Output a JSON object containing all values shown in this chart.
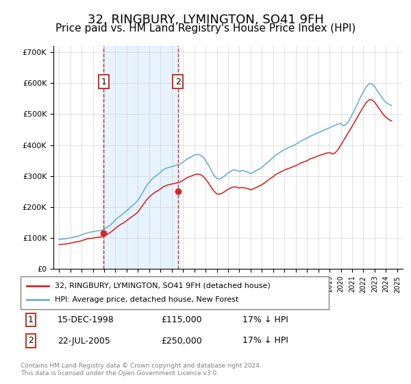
{
  "title": "32, RINGBURY, LYMINGTON, SO41 9FH",
  "subtitle": "Price paid vs. HM Land Registry's House Price Index (HPI)",
  "title_fontsize": 13,
  "subtitle_fontsize": 11,
  "legend_line1": "32, RINGBURY, LYMINGTON, SO41 9FH (detached house)",
  "legend_line2": "HPI: Average price, detached house, New Forest",
  "footer": "Contains HM Land Registry data © Crown copyright and database right 2024.\nThis data is licensed under the Open Government Licence v3.0.",
  "transactions": [
    {
      "num": 1,
      "date": "15-DEC-1998",
      "price": "£115,000",
      "pct": "17% ↓ HPI",
      "x_year": 1998.96,
      "y_val": 115000
    },
    {
      "num": 2,
      "date": "22-JUL-2005",
      "price": "£250,000",
      "pct": "17% ↓ HPI",
      "x_year": 2005.55,
      "y_val": 250000
    }
  ],
  "hpi_color": "#6baed6",
  "price_color": "#d62728",
  "marker_box_color": "#c0392b",
  "shade_color": "#ddeeff",
  "ylim": [
    0,
    720000
  ],
  "yticks": [
    0,
    100000,
    200000,
    300000,
    400000,
    500000,
    600000,
    700000
  ],
  "ytick_labels": [
    "£0",
    "£100K",
    "£200K",
    "£300K",
    "£400K",
    "£500K",
    "£600K",
    "£700K"
  ],
  "xlim": [
    1994.5,
    2025.5
  ],
  "hpi_years": [
    1995.0,
    1995.25,
    1995.5,
    1995.75,
    1996.0,
    1996.25,
    1996.5,
    1996.75,
    1997.0,
    1997.25,
    1997.5,
    1997.75,
    1998.0,
    1998.25,
    1998.5,
    1998.75,
    1999.0,
    1999.25,
    1999.5,
    1999.75,
    2000.0,
    2000.25,
    2000.5,
    2000.75,
    2001.0,
    2001.25,
    2001.5,
    2001.75,
    2002.0,
    2002.25,
    2002.5,
    2002.75,
    2003.0,
    2003.25,
    2003.5,
    2003.75,
    2004.0,
    2004.25,
    2004.5,
    2004.75,
    2005.0,
    2005.25,
    2005.5,
    2005.75,
    2006.0,
    2006.25,
    2006.5,
    2006.75,
    2007.0,
    2007.25,
    2007.5,
    2007.75,
    2008.0,
    2008.25,
    2008.5,
    2008.75,
    2009.0,
    2009.25,
    2009.5,
    2009.75,
    2010.0,
    2010.25,
    2010.5,
    2010.75,
    2011.0,
    2011.25,
    2011.5,
    2011.75,
    2012.0,
    2012.25,
    2012.5,
    2012.75,
    2013.0,
    2013.25,
    2013.5,
    2013.75,
    2014.0,
    2014.25,
    2014.5,
    2014.75,
    2015.0,
    2015.25,
    2015.5,
    2015.75,
    2016.0,
    2016.25,
    2016.5,
    2016.75,
    2017.0,
    2017.25,
    2017.5,
    2017.75,
    2018.0,
    2018.25,
    2018.5,
    2018.75,
    2019.0,
    2019.25,
    2019.5,
    2019.75,
    2020.0,
    2020.25,
    2020.5,
    2020.75,
    2021.0,
    2021.25,
    2021.5,
    2021.75,
    2022.0,
    2022.25,
    2022.5,
    2022.75,
    2023.0,
    2023.25,
    2023.5,
    2023.75,
    2024.0,
    2024.25,
    2024.5
  ],
  "hpi_values": [
    95000,
    96000,
    97000,
    98000,
    100000,
    102000,
    104000,
    106000,
    110000,
    113000,
    116000,
    118000,
    120000,
    122000,
    123000,
    124000,
    128000,
    134000,
    140000,
    148000,
    158000,
    166000,
    173000,
    180000,
    188000,
    196000,
    204000,
    212000,
    222000,
    236000,
    252000,
    268000,
    280000,
    290000,
    298000,
    304000,
    312000,
    320000,
    325000,
    328000,
    330000,
    333000,
    336000,
    338000,
    345000,
    352000,
    358000,
    362000,
    368000,
    370000,
    368000,
    362000,
    350000,
    336000,
    318000,
    302000,
    292000,
    290000,
    295000,
    302000,
    310000,
    316000,
    320000,
    318000,
    315000,
    318000,
    315000,
    312000,
    308000,
    312000,
    318000,
    322000,
    328000,
    336000,
    344000,
    352000,
    360000,
    368000,
    374000,
    380000,
    385000,
    390000,
    394000,
    398000,
    402000,
    408000,
    414000,
    418000,
    422000,
    428000,
    432000,
    436000,
    440000,
    444000,
    448000,
    452000,
    456000,
    460000,
    464000,
    468000,
    470000,
    462000,
    468000,
    480000,
    498000,
    516000,
    535000,
    555000,
    572000,
    588000,
    598000,
    598000,
    590000,
    575000,
    562000,
    548000,
    538000,
    532000,
    528000
  ],
  "price_years": [
    1995.0,
    1995.25,
    1995.5,
    1995.75,
    1996.0,
    1996.25,
    1996.5,
    1996.75,
    1997.0,
    1997.25,
    1997.5,
    1997.75,
    1998.0,
    1998.25,
    1998.5,
    1998.75,
    1999.0,
    1999.25,
    1999.5,
    1999.75,
    2000.0,
    2000.25,
    2000.5,
    2000.75,
    2001.0,
    2001.25,
    2001.5,
    2001.75,
    2002.0,
    2002.25,
    2002.5,
    2002.75,
    2003.0,
    2003.25,
    2003.5,
    2003.75,
    2004.0,
    2004.25,
    2004.5,
    2004.75,
    2005.0,
    2005.25,
    2005.5,
    2005.75,
    2006.0,
    2006.25,
    2006.5,
    2006.75,
    2007.0,
    2007.25,
    2007.5,
    2007.75,
    2008.0,
    2008.25,
    2008.5,
    2008.75,
    2009.0,
    2009.25,
    2009.5,
    2009.75,
    2010.0,
    2010.25,
    2010.5,
    2010.75,
    2011.0,
    2011.25,
    2011.5,
    2011.75,
    2012.0,
    2012.25,
    2012.5,
    2012.75,
    2013.0,
    2013.25,
    2013.5,
    2013.75,
    2014.0,
    2014.25,
    2014.5,
    2014.75,
    2015.0,
    2015.25,
    2015.5,
    2015.75,
    2016.0,
    2016.25,
    2016.5,
    2016.75,
    2017.0,
    2017.25,
    2017.5,
    2017.75,
    2018.0,
    2018.25,
    2018.5,
    2018.75,
    2019.0,
    2019.25,
    2019.5,
    2019.75,
    2020.0,
    2020.25,
    2020.5,
    2020.75,
    2021.0,
    2021.25,
    2021.5,
    2021.75,
    2022.0,
    2022.25,
    2022.5,
    2022.75,
    2023.0,
    2023.25,
    2023.5,
    2023.75,
    2024.0,
    2024.25,
    2024.5
  ],
  "price_values": [
    78000,
    79000,
    80000,
    81000,
    83000,
    85000,
    87000,
    88000,
    91000,
    94000,
    97000,
    98000,
    99000,
    101000,
    102000,
    103000,
    106000,
    111000,
    116000,
    123000,
    131000,
    138000,
    144000,
    149000,
    156000,
    163000,
    169000,
    176000,
    184000,
    196000,
    209000,
    222000,
    232000,
    240000,
    247000,
    252000,
    258000,
    265000,
    269000,
    272000,
    274000,
    276000,
    278000,
    280000,
    286000,
    292000,
    297000,
    300000,
    304000,
    306000,
    305000,
    300000,
    290000,
    278000,
    264000,
    251000,
    242000,
    241000,
    245000,
    251000,
    257000,
    262000,
    265000,
    264000,
    261000,
    263000,
    261000,
    259000,
    255000,
    259000,
    263000,
    267000,
    272000,
    278000,
    285000,
    292000,
    298000,
    305000,
    310000,
    315000,
    319000,
    323000,
    326000,
    330000,
    333000,
    338000,
    343000,
    346000,
    349000,
    355000,
    358000,
    361000,
    365000,
    368000,
    371000,
    374000,
    376000,
    371000,
    375000,
    385000,
    400000,
    415000,
    430000,
    445000,
    460000,
    476000,
    492000,
    508000,
    523000,
    537000,
    546000,
    546000,
    539000,
    526000,
    513000,
    500000,
    490000,
    483000,
    478000
  ]
}
